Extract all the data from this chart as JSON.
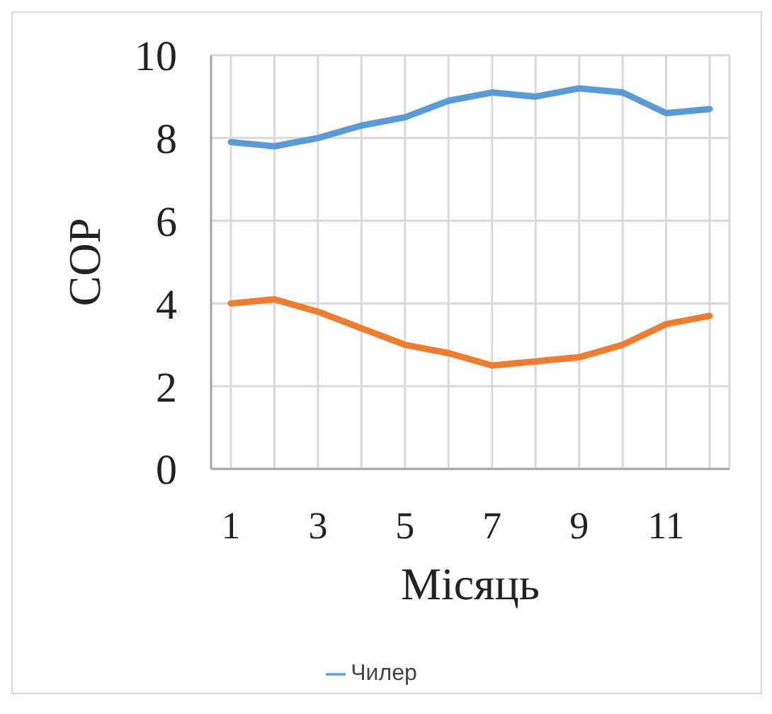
{
  "chart_data": {
    "type": "line",
    "xlabel": "Місяць",
    "ylabel": "COP",
    "categories": [
      "1",
      null,
      "3",
      null,
      "5",
      null,
      "7",
      null,
      "9",
      null,
      "11",
      null
    ],
    "series": [
      {
        "name": "Чилер",
        "color": "#5b9bd5",
        "values": [
          7.9,
          7.8,
          8.0,
          8.3,
          8.5,
          8.9,
          9.1,
          9.0,
          9.2,
          9.1,
          8.6,
          8.7
        ]
      },
      {
        "color": "#ed7d31",
        "values": [
          4.0,
          4.1,
          3.8,
          3.4,
          3.0,
          2.8,
          2.5,
          2.6,
          2.7,
          3.0,
          3.5,
          3.7
        ]
      }
    ],
    "ylim": [
      0,
      10
    ],
    "yticks": [
      0,
      2,
      4,
      6,
      8,
      10
    ],
    "grid": true,
    "legend": "bottom",
    "marker": "none",
    "line_style": "solid"
  }
}
